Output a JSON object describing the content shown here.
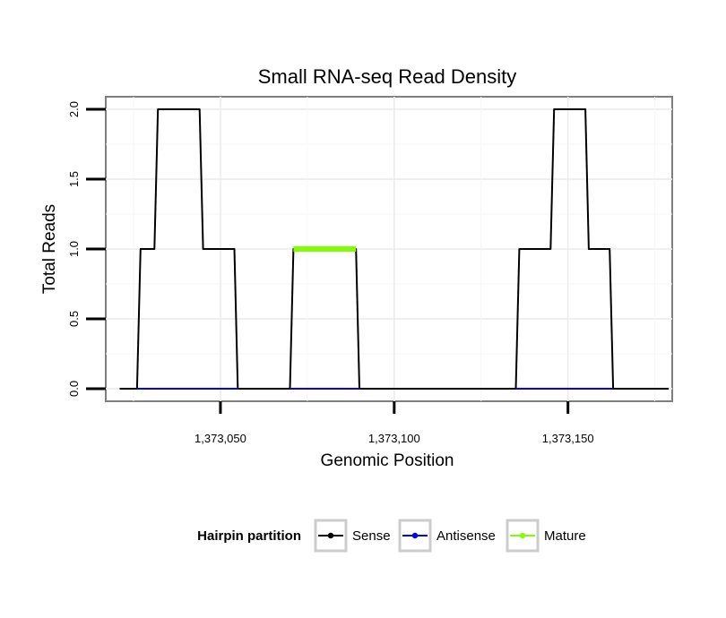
{
  "chart_data": {
    "type": "line",
    "title": "Small RNA-seq Read Density",
    "xlabel": "Genomic Position",
    "ylabel": "Total Reads",
    "xlim": [
      1373017,
      1373180
    ],
    "ylim": [
      -0.09,
      2.09
    ],
    "x_ticks": [
      1373050,
      1373100,
      1373150
    ],
    "x_tick_labels": [
      "1,373,050",
      "1,373,100",
      "1,373,150"
    ],
    "y_ticks": [
      0,
      0.5,
      1,
      1.5,
      2
    ],
    "y_tick_labels": [
      "0.0",
      "0.5",
      "1.0",
      "1.5",
      "2.0"
    ],
    "grid": true,
    "legend_position": "bottom",
    "legend_title": "Hairpin partition",
    "series": [
      {
        "name": "Sense",
        "color": "#000000",
        "x": [
          1373021,
          1373026,
          1373027,
          1373031,
          1373032,
          1373044,
          1373045,
          1373054,
          1373055,
          1373070,
          1373071,
          1373089,
          1373090,
          1373135,
          1373136,
          1373145,
          1373146,
          1373155,
          1373156,
          1373162,
          1373163,
          1373179
        ],
        "y": [
          0,
          0,
          1,
          1,
          2,
          2,
          1,
          1,
          0,
          0,
          1,
          1,
          0,
          0,
          1,
          1,
          2,
          2,
          1,
          1,
          0,
          0
        ]
      },
      {
        "name": "Antisense",
        "color": "#0000ff",
        "x": [
          1373026,
          1373055,
          1373070,
          1373090,
          1373135,
          1373163
        ],
        "y": [
          0,
          0,
          0,
          0,
          0,
          0
        ]
      },
      {
        "name": "Mature",
        "color": "#7fff00",
        "x": [
          1373071,
          1373089
        ],
        "y": [
          1,
          1
        ]
      }
    ]
  }
}
